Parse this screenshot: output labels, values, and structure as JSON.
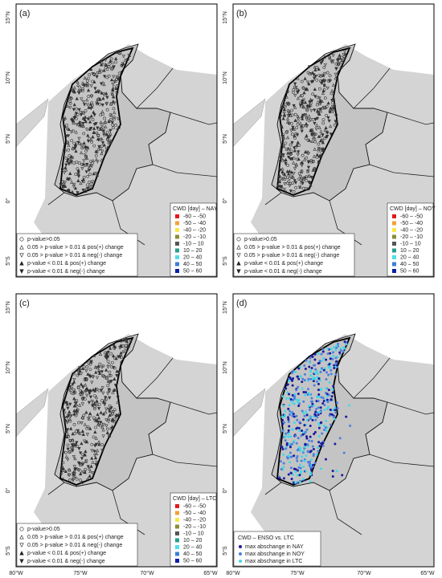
{
  "lat_labels": [
    "15°N",
    "10°N",
    "5°N",
    "0°",
    "5°S"
  ],
  "lon_labels": [
    "80°W",
    "75°W",
    "70°W",
    "65°W"
  ],
  "panels": [
    {
      "label": "(a)",
      "legend_title": "CWD [day] – NAY"
    },
    {
      "label": "(b)",
      "legend_title": "CWD [day] – NOY"
    },
    {
      "label": "(c)",
      "legend_title": "CWD [day] – LTC"
    },
    {
      "label": "(d)",
      "legend_title": "CWD – ENSO vs. LTC"
    }
  ],
  "color_legend": [
    {
      "label": "-60 – -50",
      "color": "#e31a1c"
    },
    {
      "label": "-50 – -40",
      "color": "#f4a13a"
    },
    {
      "label": "-40 – -20",
      "color": "#f5e94a"
    },
    {
      "label": "-20 – -10",
      "color": "#8c8c3a"
    },
    {
      "label": "-10 – 10",
      "color": "#555555"
    },
    {
      "label": "10 – 20",
      "color": "#2a9d8f"
    },
    {
      "label": "20 – 40",
      "color": "#4fe0e6"
    },
    {
      "label": "40 – 50",
      "color": "#3a7fd9"
    },
    {
      "label": "50 – 60",
      "color": "#0b1fa8"
    }
  ],
  "significance_legend": [
    {
      "label": "p-value>0.05",
      "symbol": "circle"
    },
    {
      "label": "0.05 > p-value > 0.01 & pos(+) change",
      "symbol": "triangle-up"
    },
    {
      "label": "0.05 > p-value > 0.01 & neg(-) change",
      "symbol": "triangle-down"
    },
    {
      "label": "p-value < 0.01 & pos(+) change",
      "symbol": "filled-up"
    },
    {
      "label": "p-value < 0.01 & neg(-) change",
      "symbol": "filled-down"
    }
  ],
  "enso_legend": [
    {
      "label": "max abschange in NAY",
      "color": "#1a1aa0"
    },
    {
      "label": "max abschange in NOY",
      "color": "#4a7fe0"
    },
    {
      "label": "max abschange in LTC",
      "color": "#40d8e8"
    }
  ]
}
